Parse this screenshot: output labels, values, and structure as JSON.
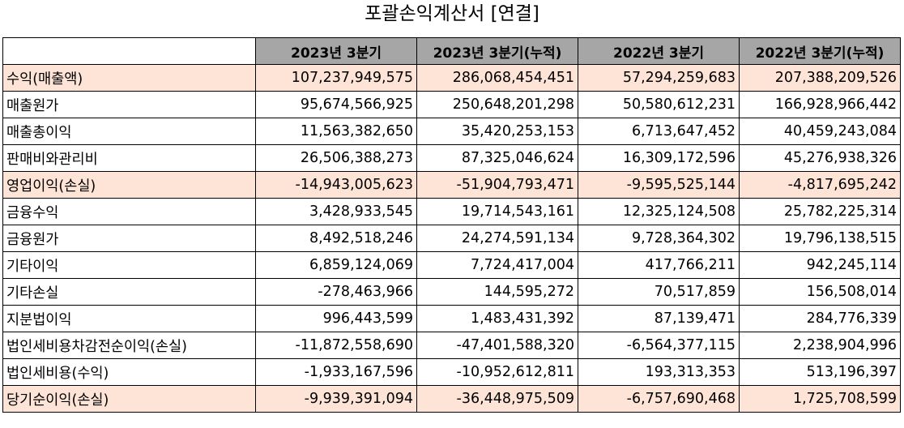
{
  "title": "포괄손익계산서 [연결]",
  "columns": [
    "2023년 3분기",
    "2023년 3분기(누적)",
    "2022년 3분기",
    "2022년 3분기(누적)"
  ],
  "rows": [
    {
      "label": "수익(매출액)",
      "highlight": true,
      "values": [
        "107,237,949,575",
        "286,068,454,451",
        "57,294,259,683",
        "207,388,209,526"
      ]
    },
    {
      "label": "매출원가",
      "highlight": false,
      "values": [
        "95,674,566,925",
        "250,648,201,298",
        "50,580,612,231",
        "166,928,966,442"
      ]
    },
    {
      "label": "매출총이익",
      "highlight": false,
      "values": [
        "11,563,382,650",
        "35,420,253,153",
        "6,713,647,452",
        "40,459,243,084"
      ]
    },
    {
      "label": "판매비와관리비",
      "highlight": false,
      "values": [
        "26,506,388,273",
        "87,325,046,624",
        "16,309,172,596",
        "45,276,938,326"
      ]
    },
    {
      "label": "영업이익(손실)",
      "highlight": true,
      "values": [
        "-14,943,005,623",
        "-51,904,793,471",
        "-9,595,525,144",
        "-4,817,695,242"
      ]
    },
    {
      "label": "금융수익",
      "highlight": false,
      "values": [
        "3,428,933,545",
        "19,714,543,161",
        "12,325,124,508",
        "25,782,225,314"
      ]
    },
    {
      "label": "금융원가",
      "highlight": false,
      "values": [
        "8,492,518,246",
        "24,274,591,134",
        "9,728,364,302",
        "19,796,138,515"
      ]
    },
    {
      "label": "기타이익",
      "highlight": false,
      "values": [
        "6,859,124,069",
        "7,724,417,004",
        "417,766,211",
        "942,245,114"
      ]
    },
    {
      "label": "기타손실",
      "highlight": false,
      "values": [
        "-278,463,966",
        "144,595,272",
        "70,517,859",
        "156,508,014"
      ]
    },
    {
      "label": "지분법이익",
      "highlight": false,
      "values": [
        "996,443,599",
        "1,483,431,392",
        "87,139,471",
        "284,776,339"
      ]
    },
    {
      "label": "법인세비용차감전순이익(손실)",
      "highlight": false,
      "values": [
        "-11,872,558,690",
        "-47,401,588,320",
        "-6,564,377,115",
        "2,238,904,996"
      ]
    },
    {
      "label": "법인세비용(수익)",
      "highlight": false,
      "values": [
        "-1,933,167,596",
        "-10,952,612,811",
        "193,313,353",
        "513,196,397"
      ]
    },
    {
      "label": "당기순이익(손실)",
      "highlight": true,
      "values": [
        "-9,939,391,094",
        "-36,448,975,509",
        "-6,757,690,468",
        "1,725,708,599"
      ]
    }
  ]
}
